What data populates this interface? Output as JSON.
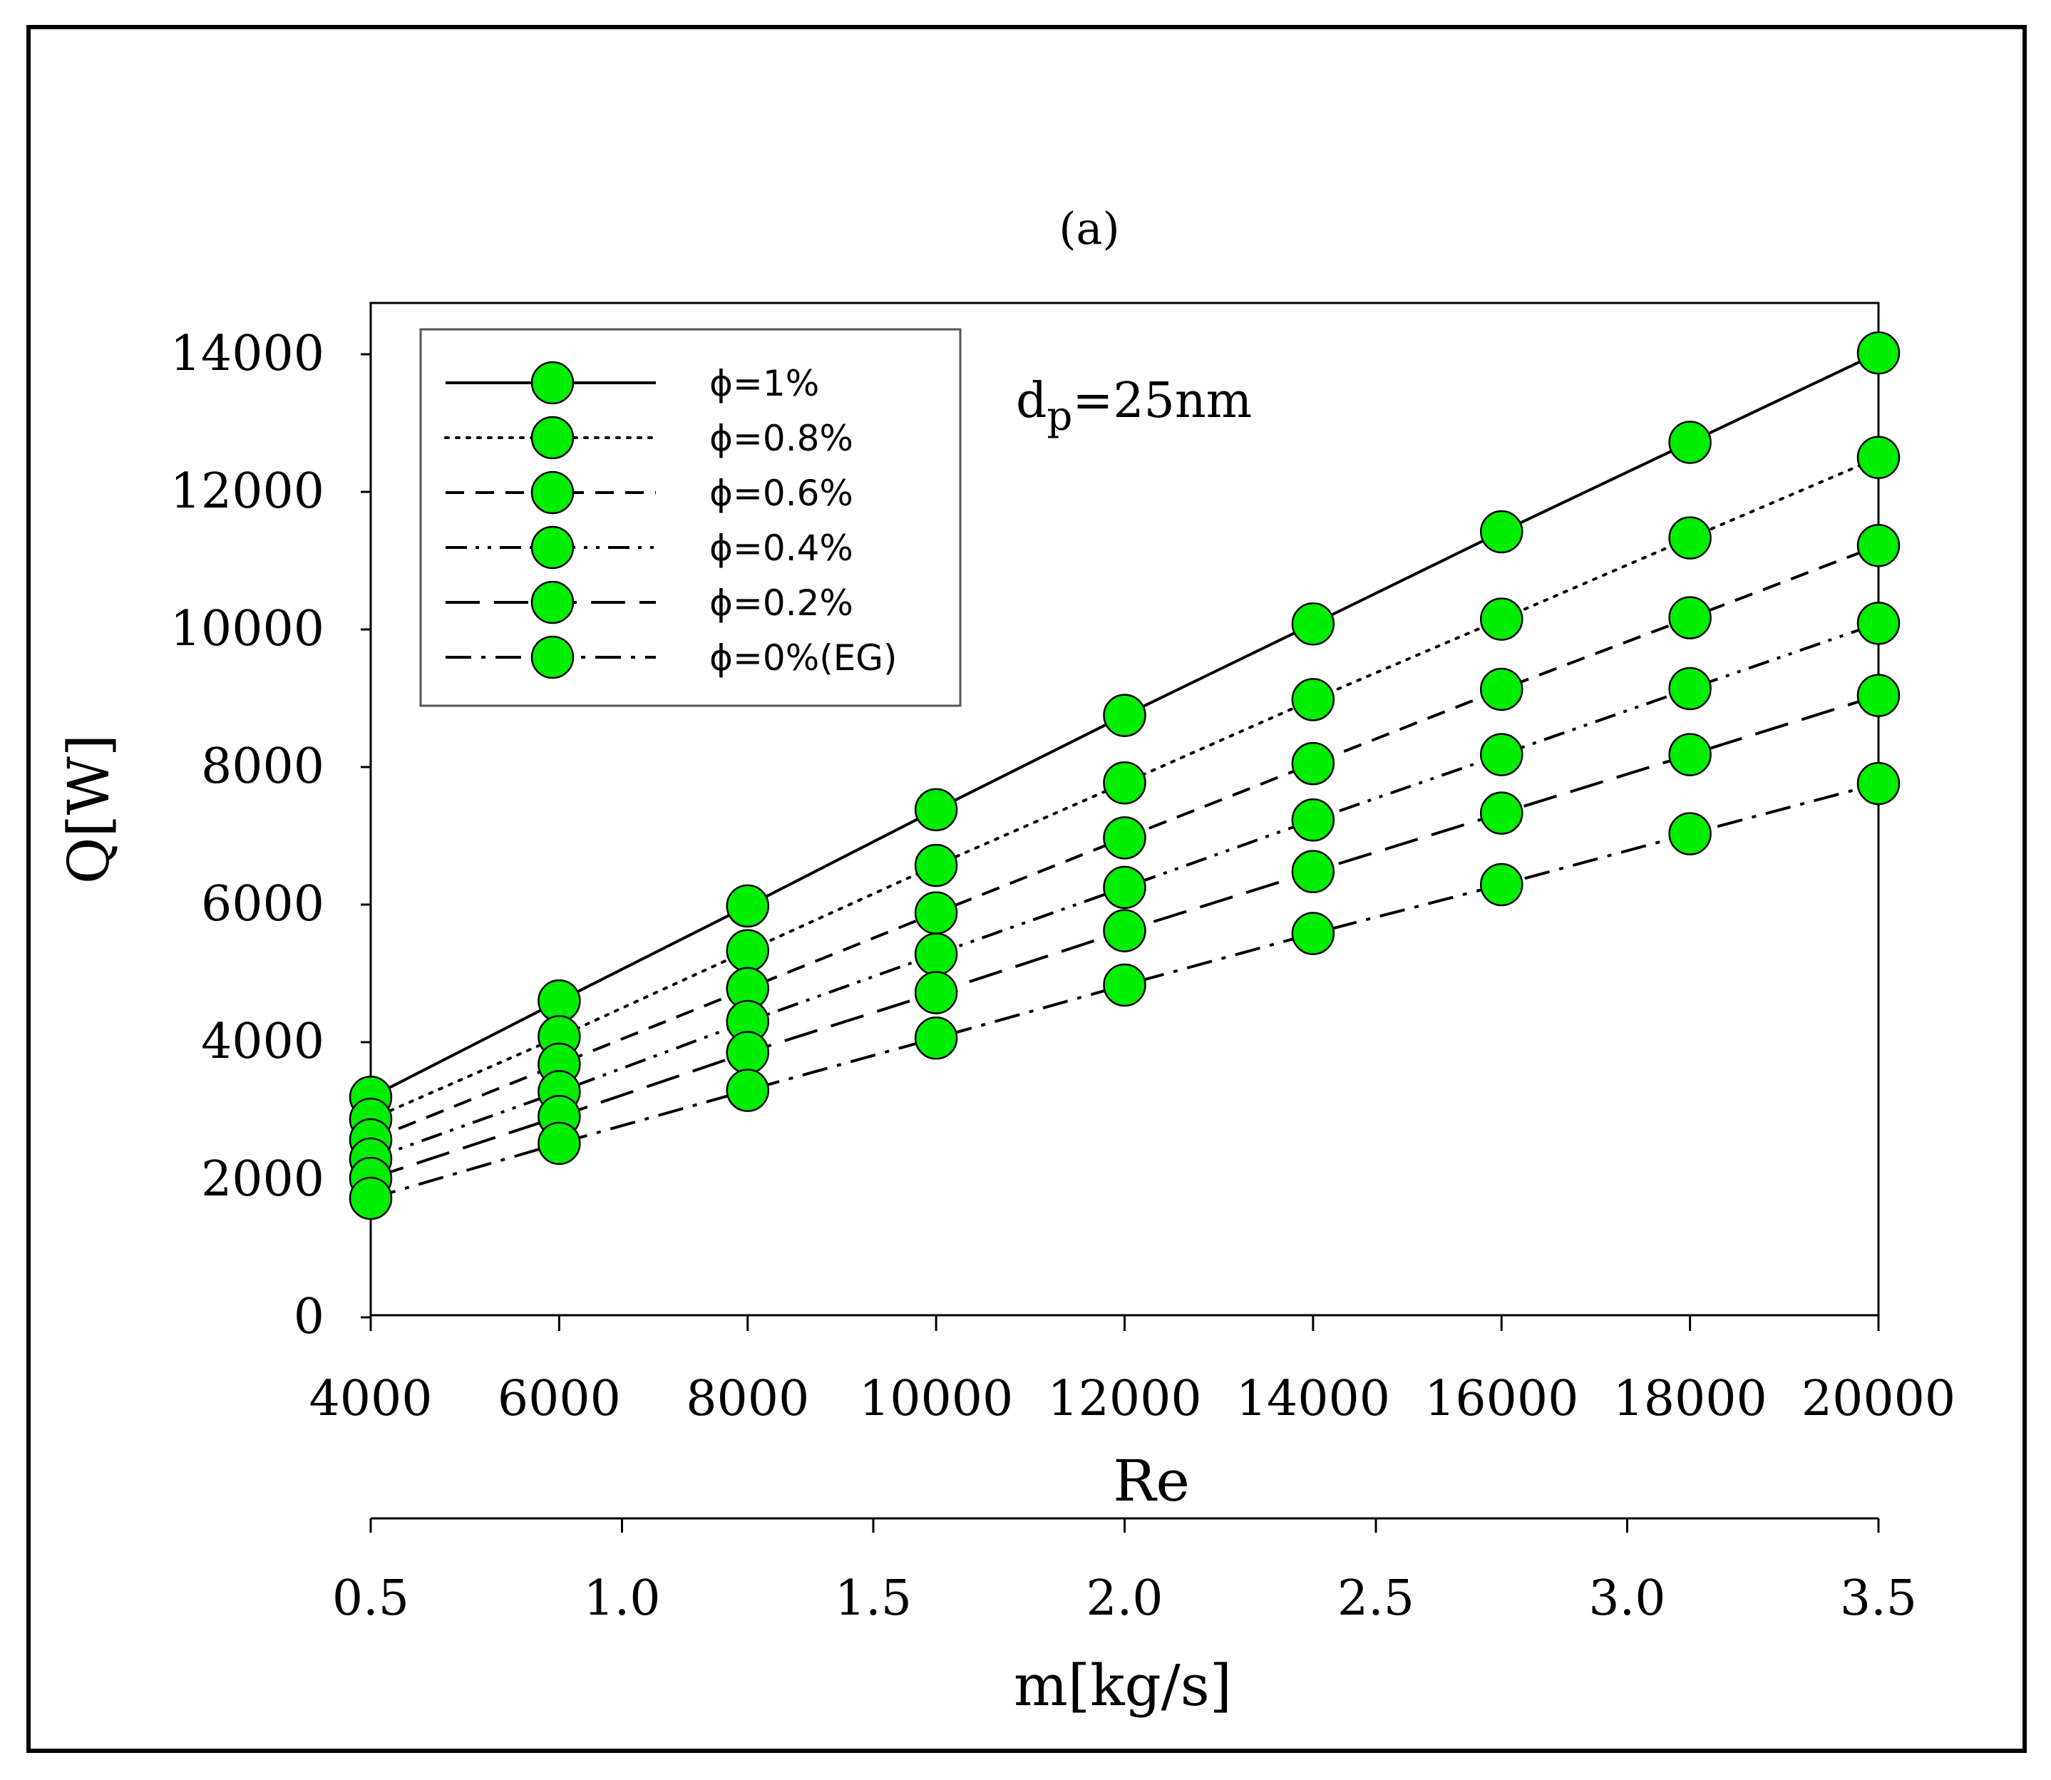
{
  "chart_data": {
    "type": "line",
    "panel_label": "(a)",
    "annotation": {
      "base": "d",
      "subscript": "p",
      "rest": "=25nm"
    },
    "xlabel": "Re",
    "ylabel": "Q[W]",
    "secondary_xlabel": "m[kg/s]",
    "x": [
      4000,
      6000,
      8000,
      10000,
      12000,
      14000,
      16000,
      18000,
      20000
    ],
    "xlim": [
      4000,
      20000
    ],
    "ylim": [
      0,
      14000
    ],
    "x_ticks": [
      "4000",
      "6000",
      "8000",
      "10000",
      "12000",
      "14000",
      "16000",
      "18000",
      "20000"
    ],
    "y_ticks": [
      "0",
      "2000",
      "4000",
      "6000",
      "8000",
      "10000",
      "12000",
      "14000"
    ],
    "secondary_x_ticks": [
      "0.5",
      "1.0",
      "1.5",
      "2.0",
      "2.5",
      "3.0",
      "3.5"
    ],
    "secondary_xlim": [
      0.5,
      3.5
    ],
    "marker_color": "#00ee00",
    "legend_position": "top-left",
    "series": [
      {
        "name": "ϕ=1%",
        "dash": "solid",
        "values": [
          3200,
          4600,
          5980,
          7380,
          8750,
          10080,
          11420,
          12720,
          14020
        ]
      },
      {
        "name": "ϕ=0.8%",
        "dash": "dotted",
        "values": [
          2880,
          4080,
          5330,
          6570,
          7770,
          8980,
          10150,
          11330,
          12500
        ]
      },
      {
        "name": "ϕ=0.6%",
        "dash": "dashed",
        "values": [
          2580,
          3680,
          4780,
          5880,
          6970,
          8050,
          9130,
          10170,
          11220
        ]
      },
      {
        "name": "ϕ=0.4%",
        "dash": "dash-dot-dot",
        "values": [
          2300,
          3280,
          4300,
          5280,
          6250,
          7230,
          8180,
          9140,
          10090
        ]
      },
      {
        "name": "ϕ=0.2%",
        "dash": "long-dash",
        "values": [
          2020,
          2920,
          3850,
          4720,
          5620,
          6480,
          7330,
          8180,
          9040
        ]
      },
      {
        "name": "ϕ=0%(EG)",
        "dash": "dash-dot",
        "values": [
          1730,
          2530,
          3300,
          4060,
          4830,
          5580,
          6290,
          7030,
          7760
        ]
      }
    ]
  }
}
